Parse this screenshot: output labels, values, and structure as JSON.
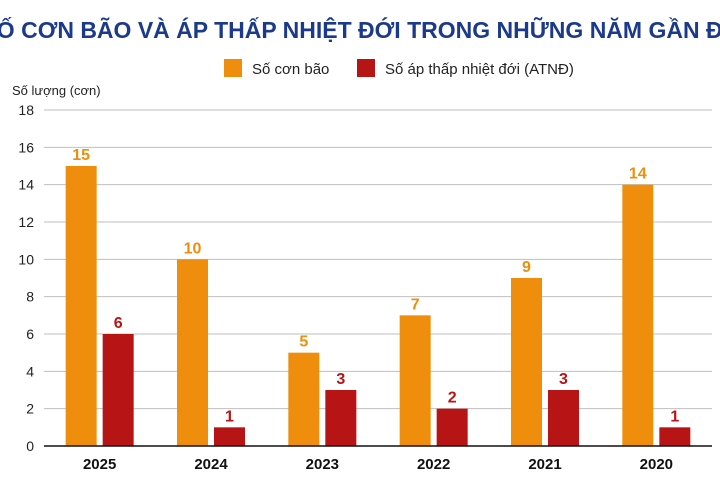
{
  "chart_data": {
    "type": "bar",
    "title": "SỐ CƠN BÃO VÀ ÁP THẤP NHIỆT ĐỚI TRONG NHỮNG NĂM GẦN ĐÂY",
    "ylabel": "Số lượng (cơn)",
    "xlabel": "",
    "categories": [
      "2025",
      "2024",
      "2023",
      "2022",
      "2021",
      "2020"
    ],
    "series": [
      {
        "name": "Số cơn bão",
        "values": [
          15,
          10,
          5,
          7,
          9,
          14
        ],
        "color": "#EE8E0C"
      },
      {
        "name": "Số áp thấp nhiệt đới (ATNĐ)",
        "values": [
          6,
          1,
          3,
          2,
          3,
          1
        ],
        "color": "#B71416"
      }
    ],
    "ylim": [
      0,
      18
    ],
    "yticks": [
      "0",
      "2",
      "4",
      "6",
      "8",
      "10",
      "12",
      "14",
      "16",
      "18"
    ],
    "grid": true,
    "legend": "top-center",
    "colors": {
      "title": "#1B3A8C",
      "grid": "#bfbfbf",
      "axis": "#111111"
    }
  }
}
